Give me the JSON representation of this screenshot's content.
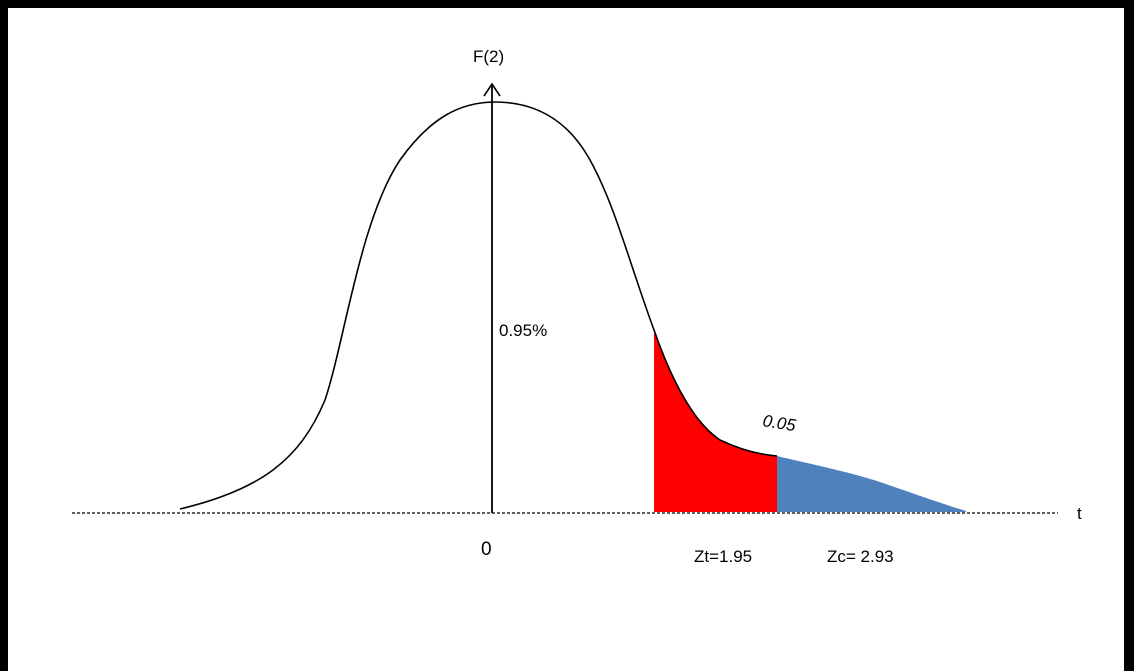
{
  "diagram": {
    "y_axis_label": "F(2)",
    "x_axis_label": "t",
    "origin_label": "0",
    "center_area_label": "0.95%",
    "tail_area_label": "0.05",
    "critical_label": "Zt=1.95",
    "computed_label": "Zc= 2.93",
    "colors": {
      "curve": "#000000",
      "critical_region": "#ff0000",
      "beyond_region": "#4f81bd",
      "axis": "#000000"
    }
  }
}
